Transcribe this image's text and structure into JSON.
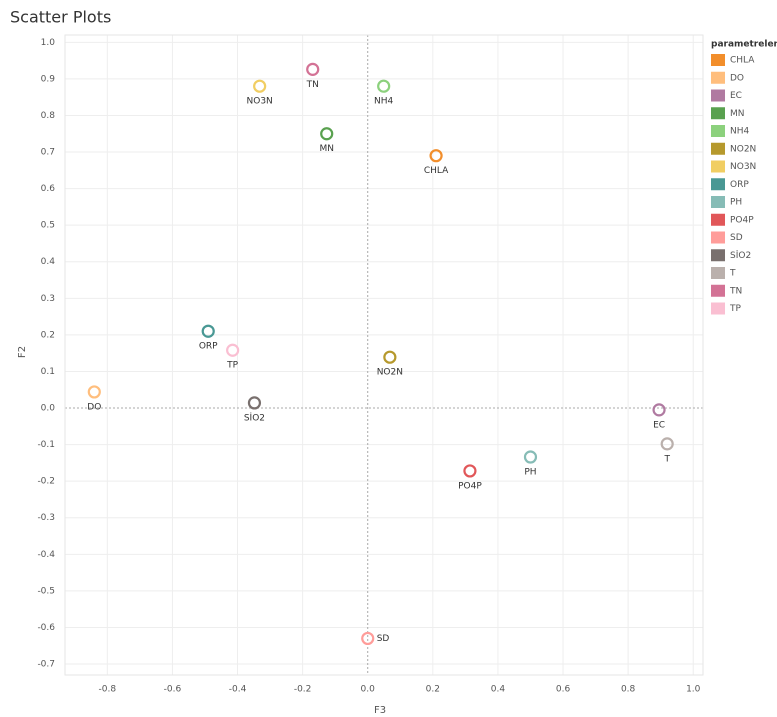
{
  "chart_data": {
    "type": "scatter",
    "title": "Scatter Plots",
    "x_label": "F3",
    "y_label": "F2",
    "legend_title": "parametreler",
    "xlim": [
      -0.93,
      1.03
    ],
    "ylim": [
      -0.73,
      1.02
    ],
    "xticks": [
      -0.8,
      -0.6,
      -0.4,
      -0.2,
      {
        "value": 0,
        "label": "0.0"
      },
      0.2,
      0.4,
      0.6,
      0.8,
      {
        "value": 1,
        "label": "1.0"
      }
    ],
    "yticks": [
      {
        "value": 1,
        "label": "1.0"
      },
      0.9,
      0.8,
      0.7,
      0.6,
      0.5,
      0.4,
      0.3,
      0.2,
      0.1,
      {
        "value": 0,
        "label": "0.0"
      },
      -0.1,
      -0.2,
      -0.3,
      -0.4,
      -0.5,
      -0.6,
      -0.7
    ],
    "grid": true,
    "legend": "right",
    "series": [
      {
        "name": "CHLA",
        "color": "#f28e2b",
        "x": [
          0.21
        ],
        "values": [
          0.69
        ]
      },
      {
        "name": "DO",
        "color": "#ffbe7d",
        "x": [
          -0.84
        ],
        "values": [
          0.044
        ]
      },
      {
        "name": "EC",
        "color": "#b07aa1",
        "x": [
          0.895
        ],
        "values": [
          -0.005
        ]
      },
      {
        "name": "MN",
        "color": "#59a14f",
        "x": [
          -0.126
        ],
        "values": [
          0.75
        ]
      },
      {
        "name": "NH4",
        "color": "#8cd17d",
        "x": [
          0.049
        ],
        "values": [
          0.88
        ]
      },
      {
        "name": "NO2N",
        "color": "#b6992d",
        "x": [
          0.068
        ],
        "values": [
          0.139
        ]
      },
      {
        "name": "NO3N",
        "color": "#f1ce63",
        "x": [
          -0.332
        ],
        "values": [
          0.88
        ]
      },
      {
        "name": "ORP",
        "color": "#499894",
        "x": [
          -0.49
        ],
        "values": [
          0.21
        ]
      },
      {
        "name": "PH",
        "color": "#86bcb6",
        "x": [
          0.5
        ],
        "values": [
          -0.134
        ]
      },
      {
        "name": "PO4P",
        "color": "#e15759",
        "x": [
          0.314
        ],
        "values": [
          -0.172
        ]
      },
      {
        "name": "SD",
        "color": "#ff9d9a",
        "x": [
          0
        ],
        "values": [
          -0.63
        ]
      },
      {
        "name": "SİO2",
        "color": "#79706e",
        "x": [
          -0.348
        ],
        "values": [
          0.014
        ]
      },
      {
        "name": "T",
        "color": "#bab0ac",
        "x": [
          0.92
        ],
        "values": [
          -0.098
        ]
      },
      {
        "name": "TN",
        "color": "#d37295",
        "x": [
          -0.169
        ],
        "values": [
          0.926
        ]
      },
      {
        "name": "TP",
        "color": "#fabfd2",
        "x": [
          -0.415
        ],
        "values": [
          0.158
        ]
      }
    ]
  }
}
